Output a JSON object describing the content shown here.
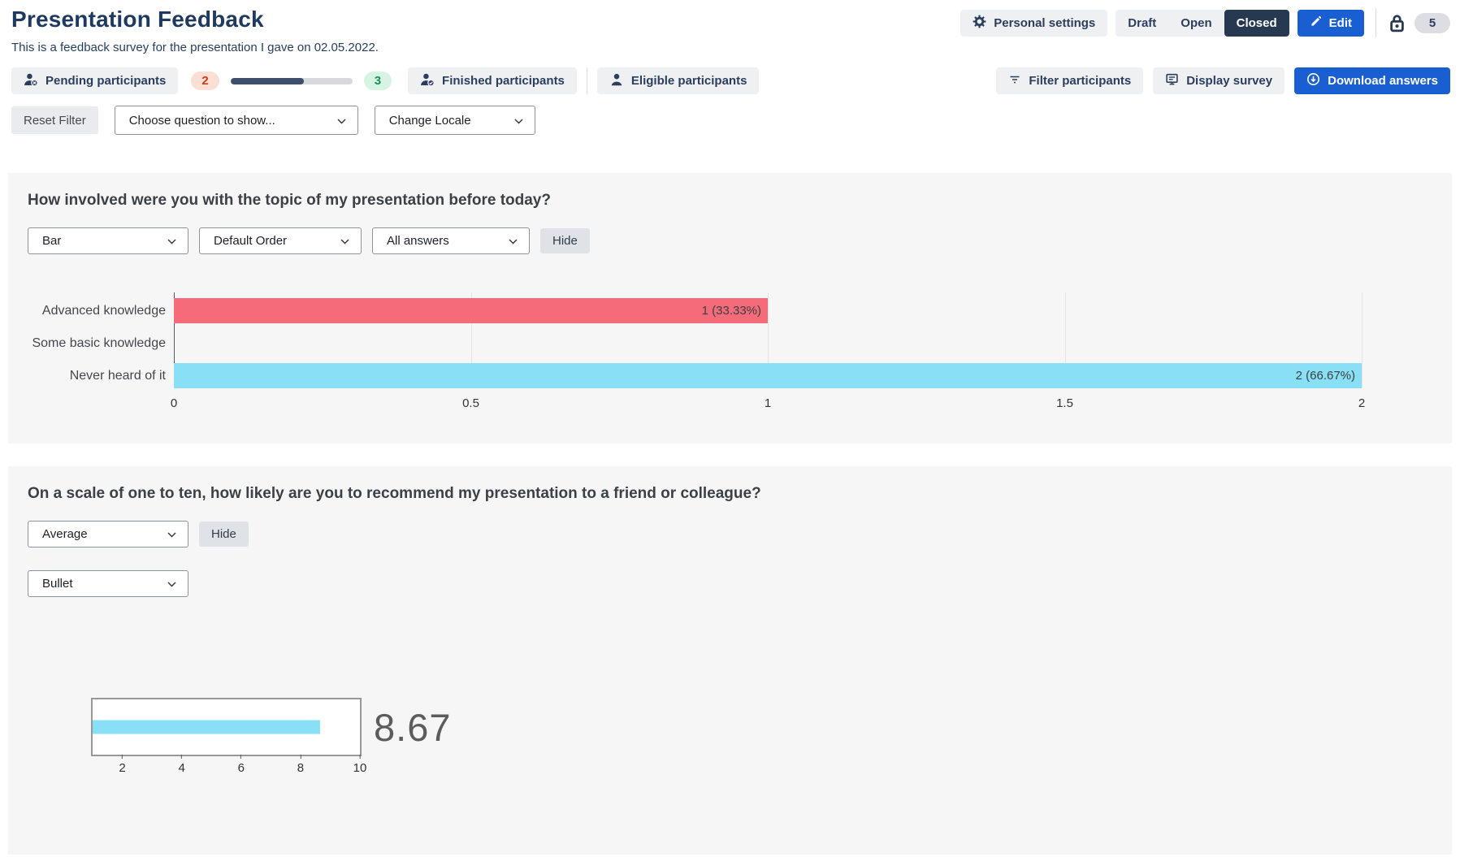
{
  "header": {
    "title": "Presentation Feedback",
    "subtitle": "This is a feedback survey for the presentation I gave on 02.05.2022.",
    "personal_settings_label": "Personal settings",
    "status_tabs": {
      "draft": "Draft",
      "open": "Open",
      "closed": "Closed",
      "active": "Closed"
    },
    "edit_label": "Edit",
    "lock_badge_count": "5"
  },
  "participants_bar": {
    "pending_label": "Pending participants",
    "pending_count": "2",
    "finished_count": "3",
    "finished_label": "Finished participants",
    "eligible_label": "Eligible participants",
    "progress_percent": 60,
    "filter_label": "Filter participants",
    "display_label": "Display survey",
    "download_label": "Download answers"
  },
  "filter_row": {
    "reset_label": "Reset Filter",
    "question_select_value": "Choose question to show...",
    "locale_select_value": "Change Locale"
  },
  "question1": {
    "title": "How involved were you with the topic of my presentation before today?",
    "chart_type_value": "Bar",
    "order_value": "Default Order",
    "answers_value": "All answers",
    "hide_label": "Hide"
  },
  "question2": {
    "title": "On a scale of one to ten, how likely are you to recommend my presentation to a friend or colleague?",
    "metric_value": "Average",
    "hide_label": "Hide",
    "chart_type_value": "Bullet",
    "average_value": "8.67"
  },
  "icons": {
    "personal_settings": "gear-icon",
    "edit": "pencil-icon",
    "lock": "lock-icon",
    "pending": "person-x-icon",
    "finished": "person-check-icon",
    "eligible": "person-icon",
    "filter": "filter-lines-icon",
    "display": "screen-icon",
    "download": "download-circle-icon",
    "select": "chevron-down-icon"
  },
  "colors": {
    "navy": "#263950",
    "accent_blue": "#1a5fd2",
    "red_badge_bg": "#fbdfd5",
    "red_badge_text": "#cd3a1c",
    "green_badge_bg": "#d7f3e2",
    "green_badge_text": "#15905f",
    "bar_red": "#f56b7a",
    "bar_cyan": "#89dff5",
    "card_bg": "#f6f6f7"
  },
  "chart_data": [
    {
      "type": "bar",
      "orientation": "horizontal",
      "title": "How involved were you with the topic of my presentation before today?",
      "categories": [
        "Advanced knowledge",
        "Some basic knowledge",
        "Never heard of it"
      ],
      "values": [
        1,
        0,
        2
      ],
      "value_labels": [
        "1 (33.33%)",
        "",
        "2 (66.67%)"
      ],
      "bar_colors": [
        "#f56b7a",
        "transparent",
        "#89dff5"
      ],
      "xlim": [
        0,
        2
      ],
      "xticks": [
        0,
        0.5,
        1,
        1.5,
        2
      ],
      "xtick_labels": [
        "0",
        "0.5",
        "1",
        "1.5",
        "2"
      ],
      "grid": true,
      "legend": false
    },
    {
      "type": "bullet",
      "title": "Average recommendation score",
      "value": 8.67,
      "display_value": "8.67",
      "range": [
        1,
        10
      ],
      "xticks": [
        2,
        4,
        6,
        8,
        10
      ],
      "xtick_labels": [
        "2",
        "4",
        "6",
        "8",
        "10"
      ],
      "bar_color": "#89dff5"
    }
  ]
}
